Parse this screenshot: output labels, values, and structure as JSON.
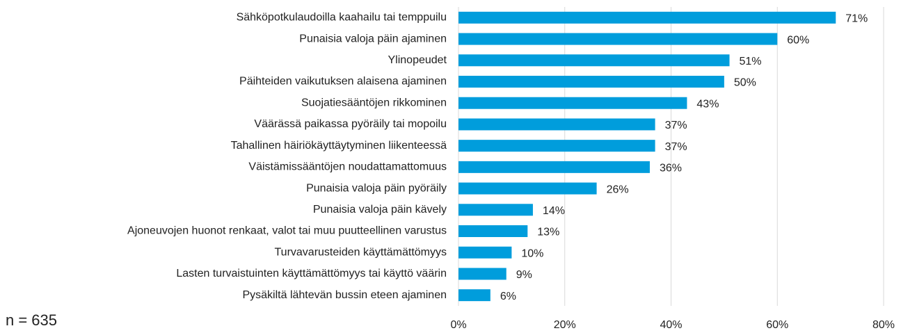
{
  "chart_data": {
    "type": "bar",
    "orientation": "horizontal",
    "categories": [
      "Sähköpotkulaudoilla kaahailu tai temppuilu",
      "Punaisia valoja päin ajaminen",
      "Ylinopeudet",
      "Päihteiden vaikutuksen alaisena ajaminen",
      "Suojatiesääntöjen rikkominen",
      "Väärässä paikassa pyöräily tai mopoilu",
      "Tahallinen häiriökäyttäytyminen liikenteessä",
      "Väistämissääntöjen noudattamattomuus",
      "Punaisia valoja päin pyöräily",
      "Punaisia valoja päin kävely",
      "Ajoneuvojen huonot renkaat, valot tai muu puutteellinen varustus",
      "Turvavarusteiden käyttämättömyys",
      "Lasten turvaistuinten käyttämättömyys tai käyttö väärin",
      "Pysäkiltä lähtevän bussin eteen ajaminen"
    ],
    "values": [
      71,
      60,
      51,
      50,
      43,
      37,
      37,
      36,
      26,
      14,
      13,
      10,
      9,
      6
    ],
    "value_labels": [
      "71%",
      "60%",
      "51%",
      "50%",
      "43%",
      "37%",
      "37%",
      "36%",
      "26%",
      "14%",
      "13%",
      "10%",
      "9%",
      "6%"
    ],
    "color": "#009ddc",
    "xlim": [
      0,
      80
    ],
    "xticks": [
      {
        "value": 0,
        "label": "0%"
      },
      {
        "value": 20,
        "label": "20%"
      },
      {
        "value": 40,
        "label": "40%"
      },
      {
        "value": 60,
        "label": "60%"
      },
      {
        "value": 80,
        "label": "80%"
      }
    ],
    "grid": true,
    "annotation": "n = 635"
  }
}
